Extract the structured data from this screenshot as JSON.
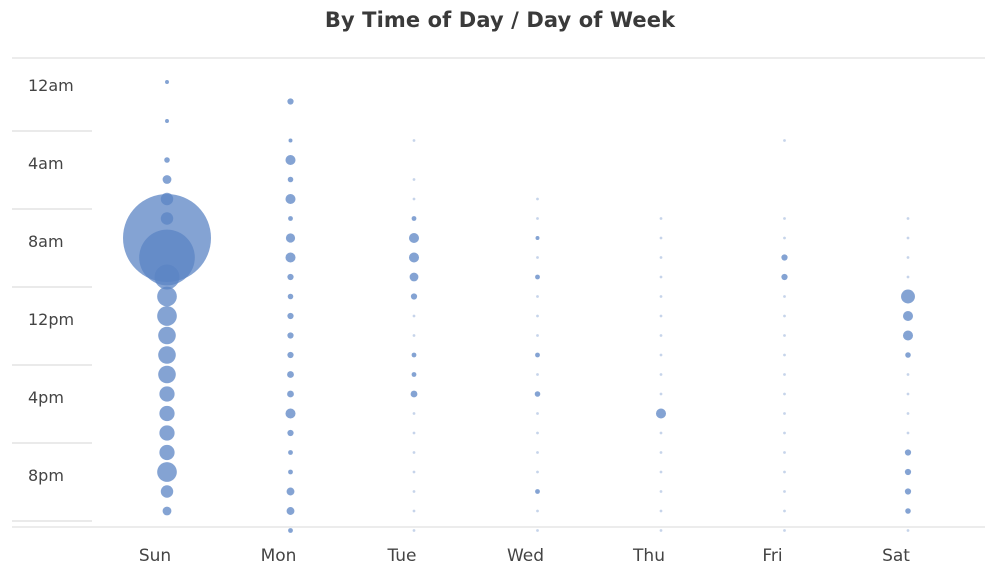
{
  "chart_data": {
    "type": "scatter",
    "title": "By Time of Day / Day of Week",
    "days": [
      "Sun",
      "Mon",
      "Tue",
      "Wed",
      "Thu",
      "Fri",
      "Sat"
    ],
    "y_tick_labels": [
      "12am",
      "4am",
      "8am",
      "12pm",
      "4pm",
      "8pm"
    ],
    "y_tick_hours": [
      0,
      4,
      8,
      12,
      16,
      20
    ],
    "hours": [
      0,
      1,
      2,
      3,
      4,
      5,
      6,
      7,
      8,
      9,
      10,
      11,
      12,
      13,
      14,
      15,
      16,
      17,
      18,
      19,
      20,
      21,
      22,
      23
    ],
    "bubble_color": "#5b84c4",
    "series": [
      {
        "day": "Sun",
        "values": [
          0.2,
          0,
          0.2,
          0,
          0.4,
          1,
          2,
          2,
          100,
          40,
          8,
          5,
          5,
          4,
          4,
          4,
          3,
          3,
          3,
          3,
          5,
          2,
          1,
          0
        ]
      },
      {
        "day": "Mon",
        "values": [
          0,
          0.5,
          0,
          0.2,
          1.3,
          0.4,
          1.3,
          0.3,
          1.1,
          1.3,
          0.5,
          0.4,
          0.5,
          0.5,
          0.5,
          0.6,
          0.6,
          1.3,
          0.5,
          0.3,
          0.3,
          0.8,
          0.8,
          0.3
        ]
      },
      {
        "day": "Tue",
        "values": [
          0,
          0,
          0,
          0.1,
          0,
          0.1,
          0.1,
          0.3,
          1.3,
          1.3,
          1.0,
          0.5,
          0.1,
          0.1,
          0.3,
          0.3,
          0.6,
          0.1,
          0.1,
          0.1,
          0.1,
          0.1,
          0.1,
          0.1
        ]
      },
      {
        "day": "Wed",
        "values": [
          0,
          0,
          0,
          0,
          0,
          0,
          0.1,
          0.1,
          0.2,
          0.1,
          0.3,
          0.1,
          0.1,
          0.1,
          0.3,
          0.1,
          0.4,
          0.1,
          0.1,
          0.1,
          0.1,
          0.3,
          0.1,
          0.1
        ]
      },
      {
        "day": "Thu",
        "values": [
          0,
          0,
          0,
          0,
          0,
          0,
          0,
          0.1,
          0.1,
          0.1,
          0.1,
          0.1,
          0.1,
          0.1,
          0.1,
          0.1,
          0.1,
          1.3,
          0.1,
          0.1,
          0.1,
          0.1,
          0.1,
          0.1
        ]
      },
      {
        "day": "Fri",
        "values": [
          0,
          0,
          0,
          0.1,
          0,
          0,
          0,
          0.1,
          0.1,
          0.5,
          0.5,
          0.1,
          0.1,
          0.1,
          0.1,
          0.1,
          0.1,
          0.1,
          0.1,
          0.1,
          0.1,
          0.1,
          0.1,
          0.1
        ]
      },
      {
        "day": "Sat",
        "values": [
          0,
          0,
          0,
          0,
          0,
          0,
          0,
          0.1,
          0.1,
          0.1,
          0.1,
          2.5,
          1.3,
          1.3,
          0.4,
          0.1,
          0.1,
          0.1,
          0.1,
          0.5,
          0.5,
          0.5,
          0.4,
          0.1
        ]
      }
    ]
  }
}
